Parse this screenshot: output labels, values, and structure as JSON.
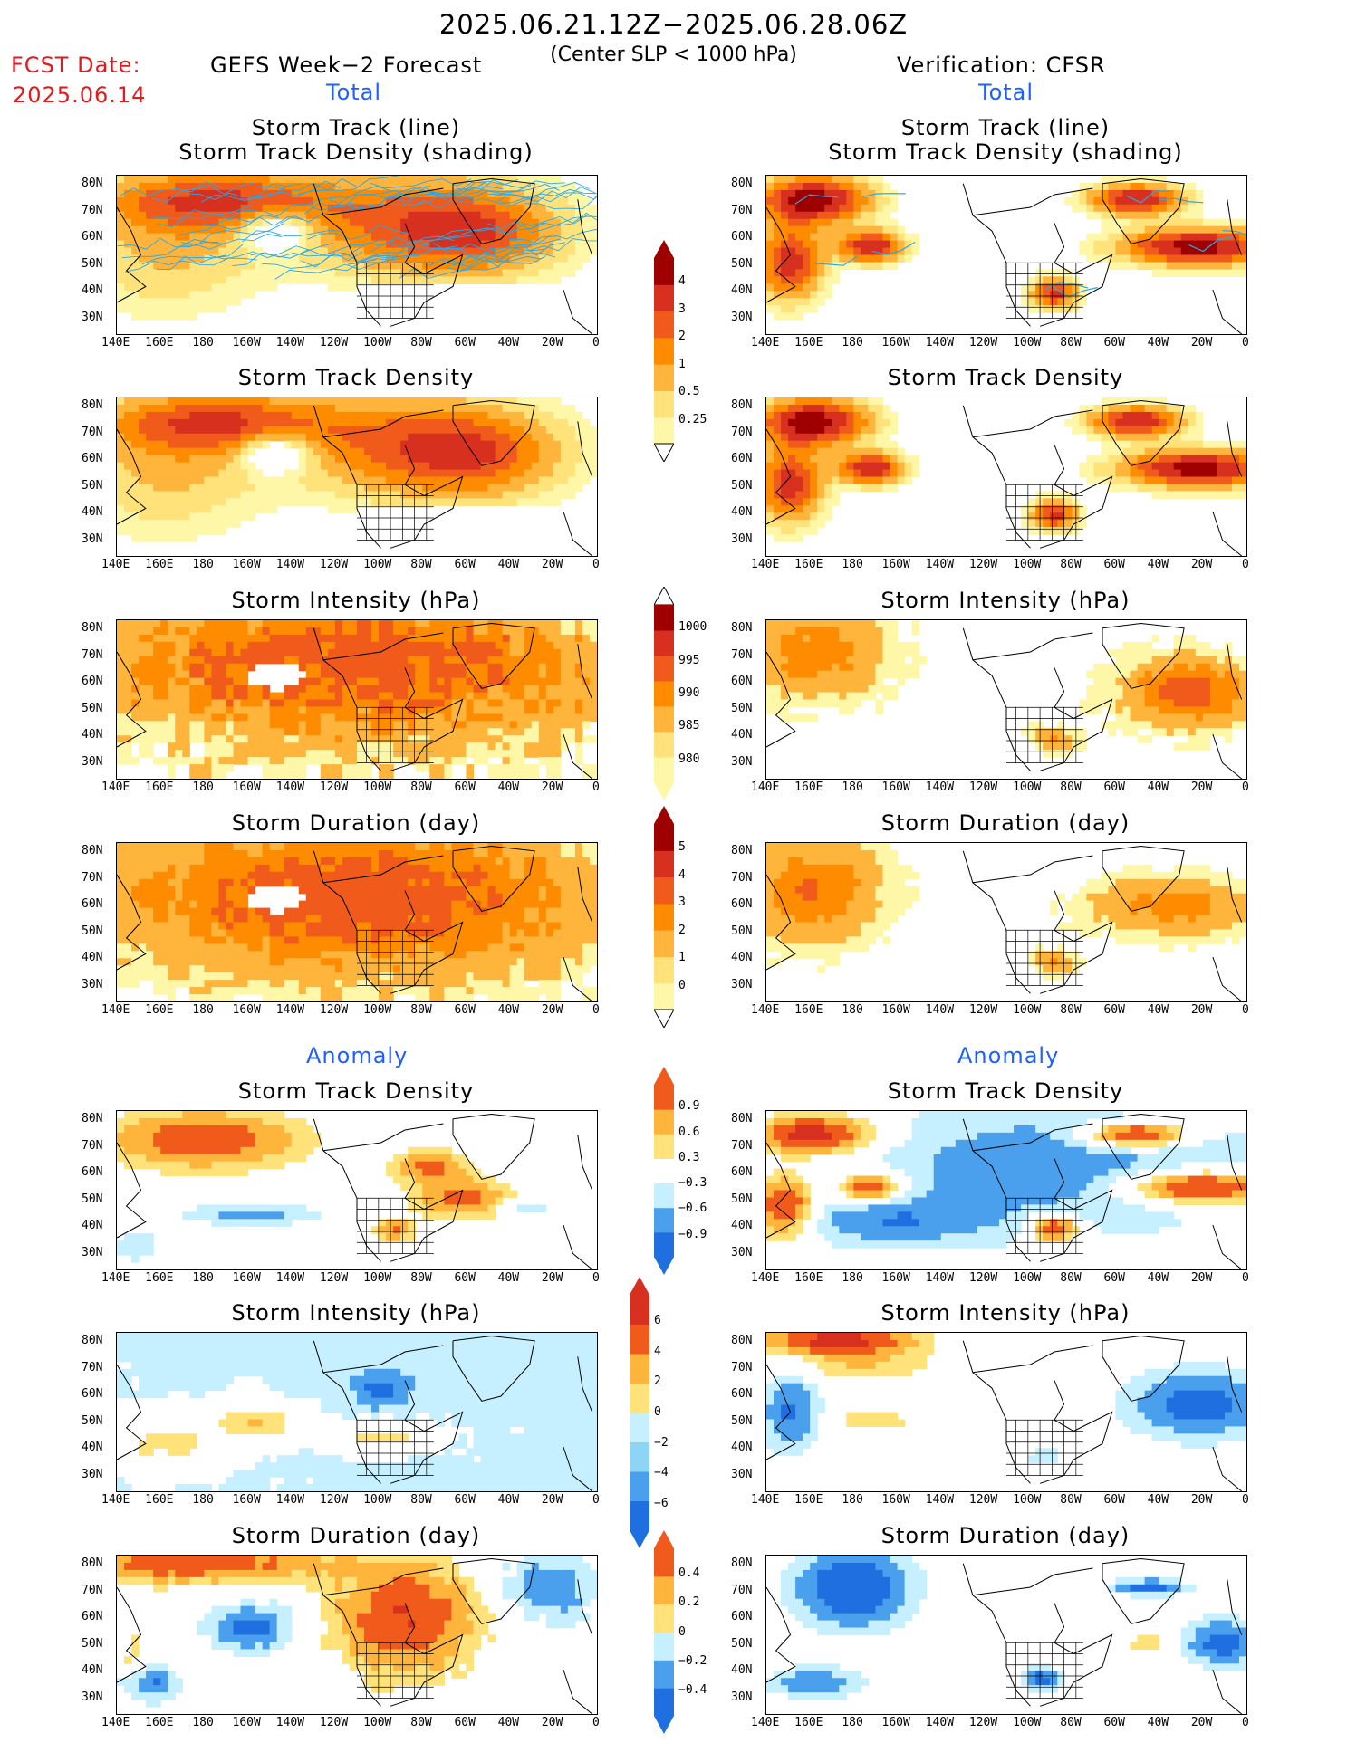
{
  "header": {
    "date_range": "2025.06.21.12Z−2025.06.28.06Z",
    "criterion": "(Center SLP < 1000 hPa)",
    "fcst_label": "FCST Date:",
    "fcst_date": "2025.06.14",
    "left_title": "GEFS Week−2 Forecast",
    "right_title": "Verification: CFSR",
    "total_label": "Total",
    "anomaly_label": "Anomaly"
  },
  "axes": {
    "lon_ticks": [
      "140E",
      "160E",
      "180",
      "160W",
      "140W",
      "120W",
      "100W",
      "80W",
      "60W",
      "40W",
      "20W",
      "0"
    ],
    "lat_ticks": [
      "80N",
      "70N",
      "60N",
      "50N",
      "40N",
      "30N"
    ]
  },
  "panel_titles": {
    "track_line": "Storm Track (line)",
    "track_shading": "Storm Track Density (shading)",
    "density": "Storm Track Density",
    "intensity": "Storm Intensity (hPa)",
    "duration": "Storm Duration (day)"
  },
  "colorbars": {
    "density_total": [
      "4",
      "3",
      "2",
      "1",
      "0.5",
      "0.25"
    ],
    "intensity_total": [
      "1000",
      "995",
      "990",
      "985",
      "980"
    ],
    "duration_total": [
      "5",
      "4",
      "3",
      "2",
      "1",
      "0"
    ],
    "density_anom": [
      "0.9",
      "0.6",
      "0.3",
      "−0.3",
      "−0.6",
      "−0.9"
    ],
    "intensity_anom": [
      "6",
      "4",
      "2",
      "0",
      "−2",
      "−4",
      "−6"
    ],
    "duration_anom": [
      "0.4",
      "0.2",
      "0",
      "−0.2",
      "−0.4"
    ]
  },
  "colors": {
    "warm": [
      "#fff7a8",
      "#ffe27a",
      "#ffb43c",
      "#ff8c00",
      "#f05a1a",
      "#d7301f",
      "#9e0000"
    ],
    "cool": [
      "#c6efff",
      "#8ed4f5",
      "#4aa0ec",
      "#1f6fe0"
    ],
    "track_line": "#2aa8e8",
    "title_red": "#e31a1c",
    "title_blue": "#1f5fff"
  }
}
